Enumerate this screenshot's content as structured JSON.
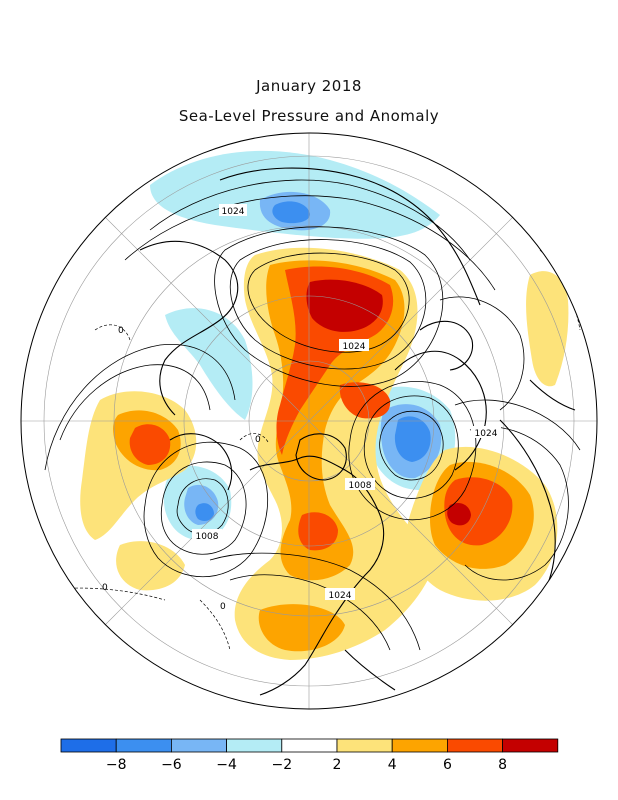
{
  "title": "January 2018",
  "subtitle": "Sea-Level Pressure and Anomaly",
  "contour_labels": {
    "c1": "1024",
    "c2": "1024",
    "c3": "1024",
    "c4": "1008",
    "c5": "1008",
    "c6": "1024",
    "z1": "0",
    "z2": "0",
    "z3": "0",
    "z4": "0"
  },
  "colorbar": {
    "ticks": [
      "−8",
      "−6",
      "−4",
      "−2",
      "2",
      "4",
      "6",
      "8"
    ],
    "colors": [
      "#1e6ee8",
      "#3c8ff0",
      "#78b6f5",
      "#b4ecf5",
      "#ffffff",
      "#fde37a",
      "#fda400",
      "#fa4a00",
      "#c40000"
    ]
  },
  "colors": {
    "strong_negative": "#1e6ee8",
    "negative": "#3c8ff0",
    "weak_negative": "#78b6f5",
    "slight_negative": "#b4ecf5",
    "slight_positive": "#fde37a",
    "positive": "#fda400",
    "strong_positive": "#fa4a00",
    "extreme_positive": "#c40000"
  }
}
